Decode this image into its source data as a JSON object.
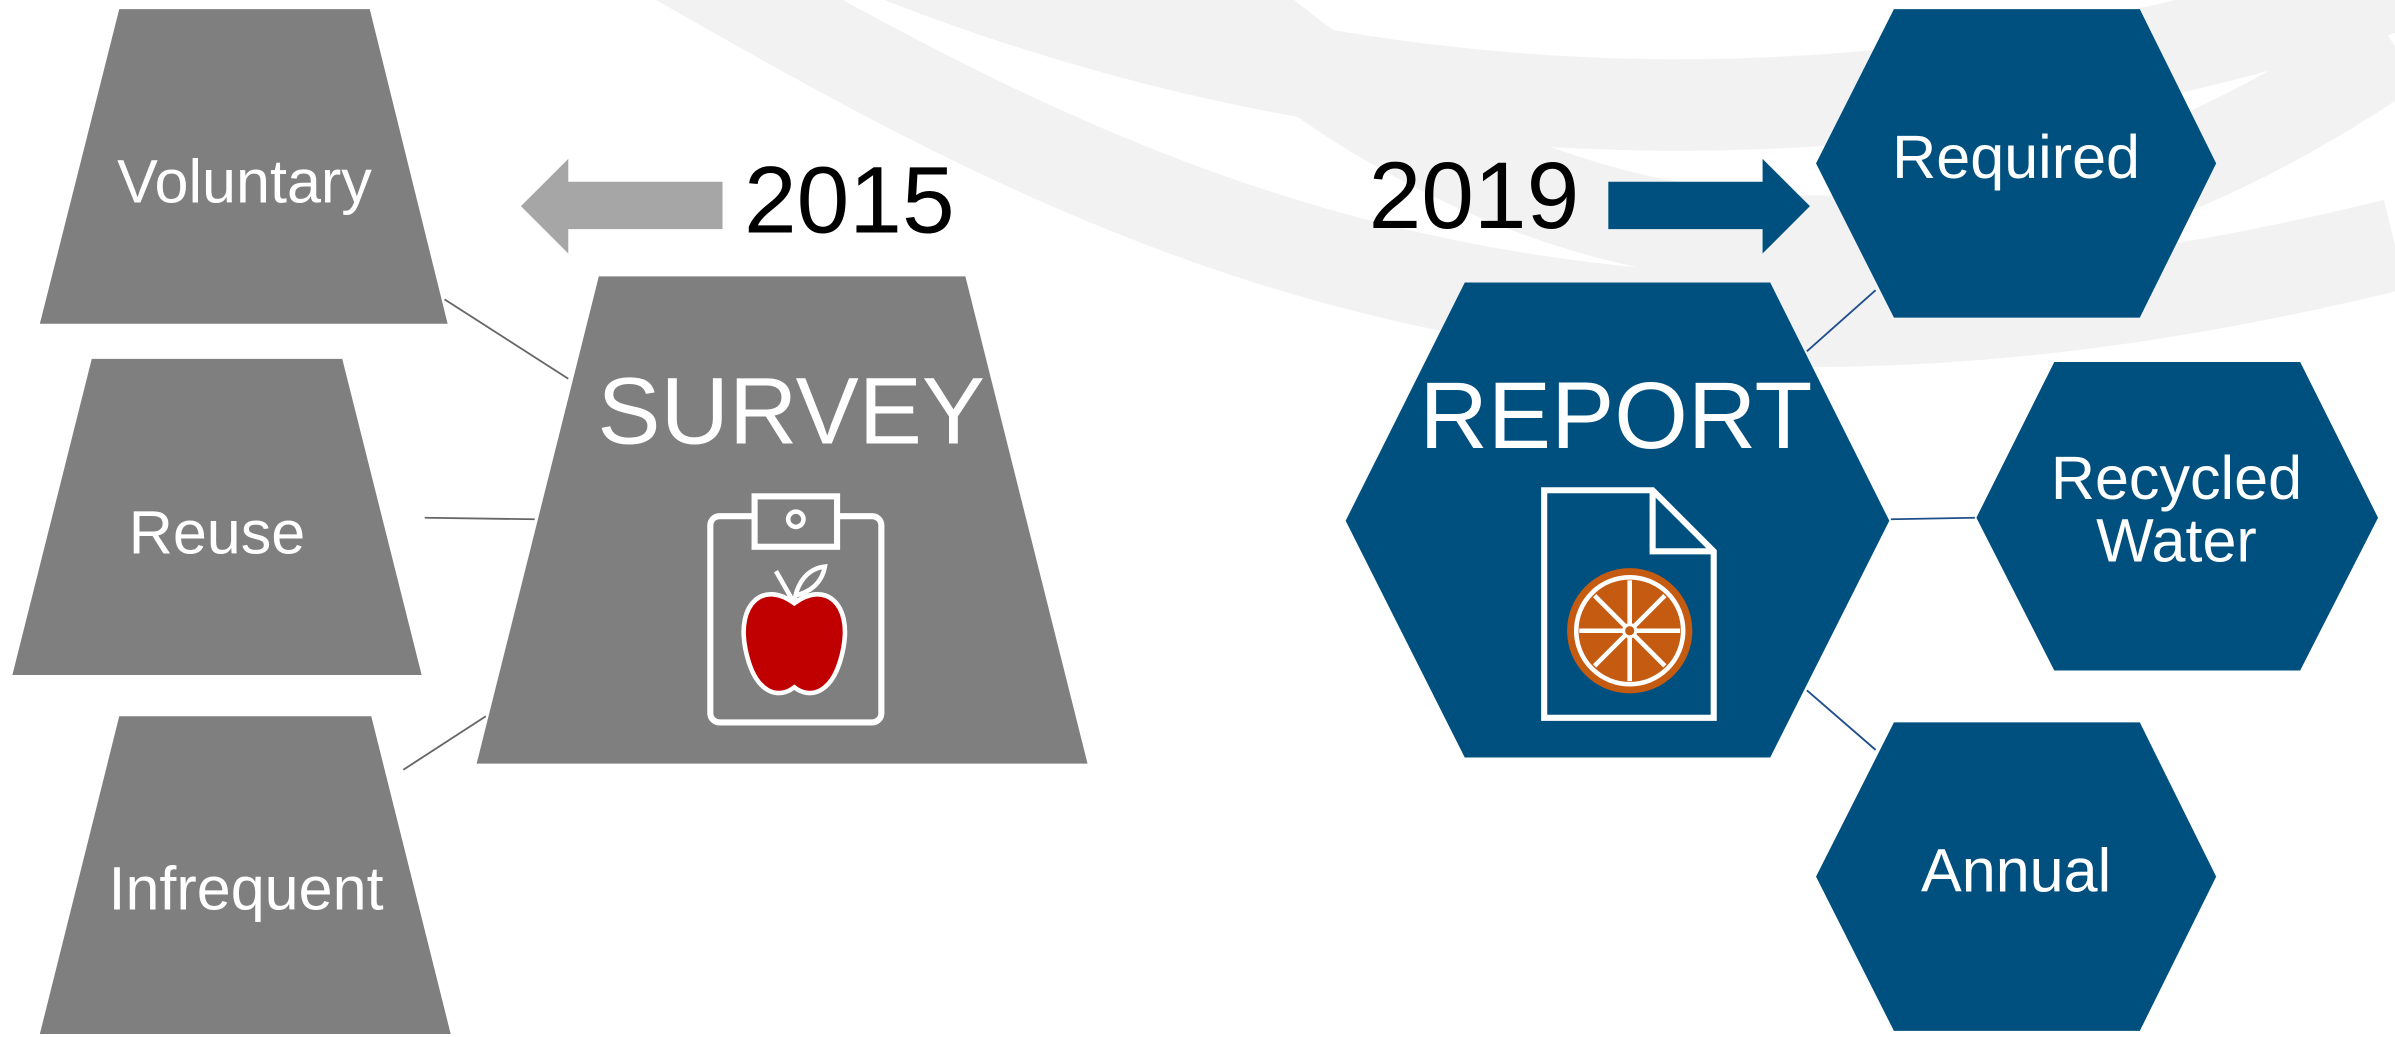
{
  "survey": {
    "year": "2015",
    "title": "SURVEY",
    "traits": [
      "Voluntary",
      "Reuse",
      "Infrequent"
    ]
  },
  "report": {
    "year": "2019",
    "title": "REPORT",
    "traits": [
      "Required",
      [
        "Recycled",
        "Water"
      ],
      "Annual"
    ]
  }
}
